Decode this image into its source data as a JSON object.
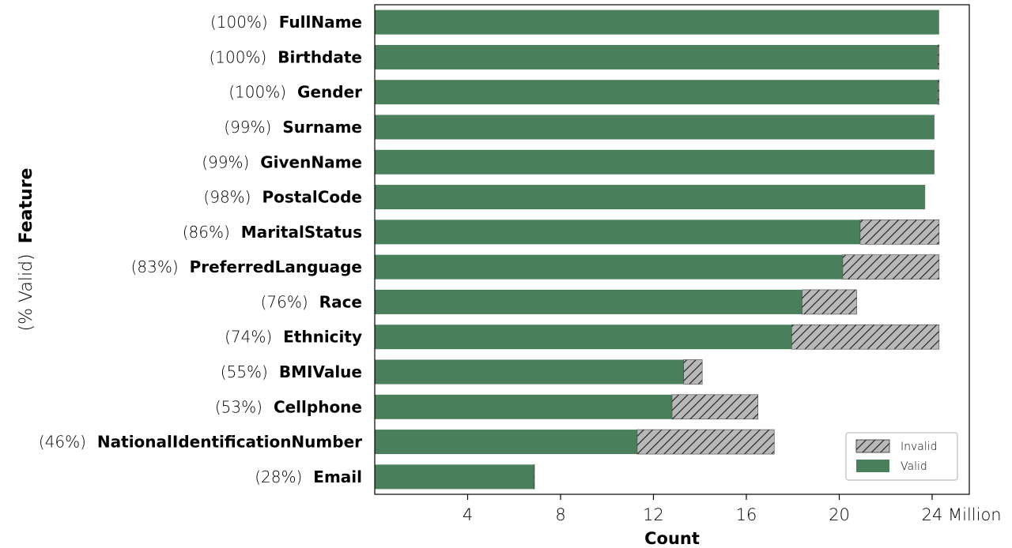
{
  "chart_data": {
    "type": "bar",
    "orientation": "horizontal",
    "stacked": true,
    "xlabel": "Count",
    "xunit": "Million",
    "ylabel_prefix": "(% Valid)",
    "ylabel_main": "Feature",
    "xlim": [
      0,
      25.6
    ],
    "xticks": [
      4,
      8,
      12,
      16,
      20,
      24
    ],
    "grid": false,
    "legend_position": "lower-right",
    "colors": {
      "valid": "#4a7f5c",
      "invalid": "#b8b8b8",
      "hatch": "#1a1a1a"
    },
    "categories": [
      "FullName",
      "Birthdate",
      "Gender",
      "Surname",
      "GivenName",
      "PostalCode",
      "MaritalStatus",
      "PreferredLanguage",
      "Race",
      "Ethnicity",
      "BMIValue",
      "Cellphone",
      "NationalIdentificationNumber",
      "Email"
    ],
    "percent_labels": [
      "(100%)",
      "(100%)",
      "(100%)",
      "(99%)",
      "(99%)",
      "(98%)",
      "(86%)",
      "(83%)",
      "(76%)",
      "(74%)",
      "(55%)",
      "(53%)",
      "(46%)",
      "(28%)"
    ],
    "series": [
      {
        "name": "Valid",
        "values": [
          24.3,
          24.25,
          24.25,
          24.1,
          24.1,
          23.7,
          20.9,
          20.15,
          18.4,
          17.95,
          13.3,
          12.8,
          11.3,
          6.85
        ]
      },
      {
        "name": "Invalid",
        "values": [
          0.0,
          0.05,
          0.05,
          0.0,
          0.0,
          0.0,
          3.4,
          4.15,
          2.35,
          6.35,
          0.8,
          3.7,
          5.9,
          0.02
        ]
      }
    ],
    "legend": [
      "Invalid",
      "Valid"
    ]
  }
}
